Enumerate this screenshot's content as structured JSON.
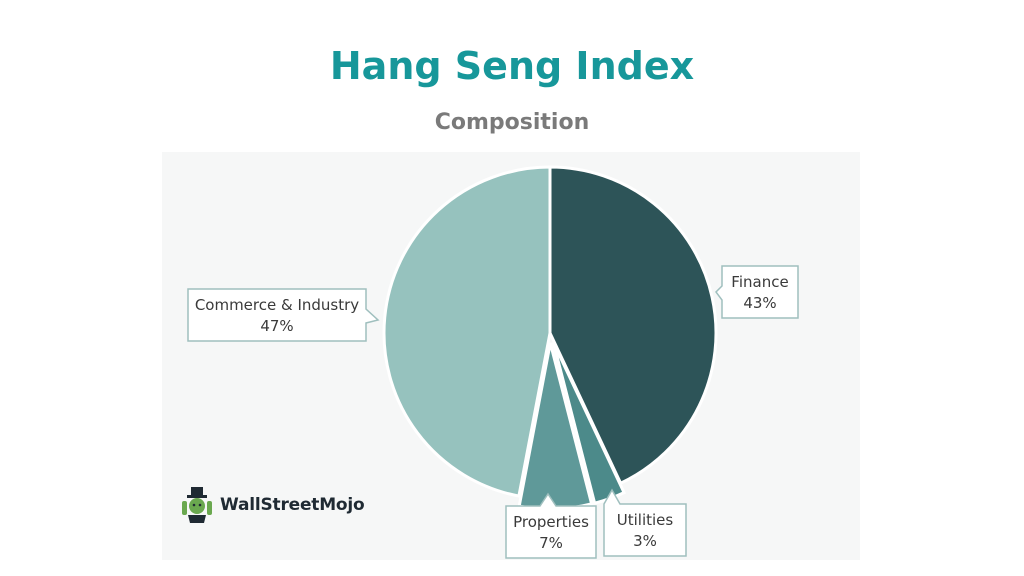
{
  "chart_data": {
    "type": "pie",
    "title": "Hang Seng Index",
    "subtitle": "Composition",
    "slices": [
      {
        "name": "Finance",
        "value": 43,
        "label": "43%",
        "color": "#2d5458"
      },
      {
        "name": "Utilities",
        "value": 3,
        "label": "3%",
        "color": "#4c8a8a"
      },
      {
        "name": "Properties",
        "value": 7,
        "label": "7%",
        "color": "#5f9999"
      },
      {
        "name": "Commerce & Industry",
        "value": 47,
        "label": "47%",
        "color": "#96c2be"
      }
    ],
    "start_angle": "12 o'clock",
    "direction": "clockwise",
    "exploded": [
      "Utilities",
      "Properties"
    ],
    "legend": "none",
    "title_color": "#17979a",
    "subtitle_color": "#7a7a7a"
  },
  "logo": {
    "text": "WallStreetMojo",
    "icon": "mascot-icon"
  }
}
